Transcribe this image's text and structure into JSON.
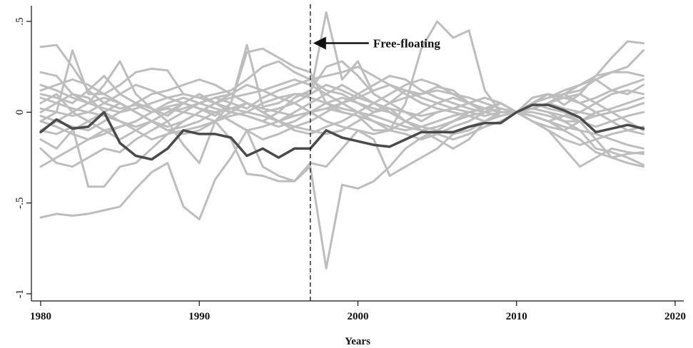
{
  "chart_data": {
    "type": "line",
    "xlabel": "Years",
    "ylabel": "",
    "xlim": [
      1980,
      2020
    ],
    "ylim": [
      -1,
      0.5
    ],
    "x_ticks": [
      1980,
      1990,
      2000,
      2010,
      2020
    ],
    "x_tick_labels": [
      "1980",
      "1990",
      "2000",
      "2010",
      "2020"
    ],
    "y_ticks": [
      -1,
      -0.5,
      0,
      0.5
    ],
    "y_tick_labels": [
      "-1",
      "-.5",
      "0",
      ".5"
    ],
    "grid": false,
    "legend": "none",
    "x": [
      1980,
      1981,
      1982,
      1983,
      1984,
      1985,
      1986,
      1987,
      1988,
      1989,
      1990,
      1991,
      1992,
      1993,
      1994,
      1995,
      1996,
      1997,
      1998,
      1999,
      2000,
      2001,
      2002,
      2003,
      2004,
      2005,
      2006,
      2007,
      2008,
      2009,
      2010,
      2011,
      2012,
      2013,
      2014,
      2015,
      2016,
      2017,
      2018
    ],
    "colors": {
      "background_series": "#bdbdbd",
      "highlight_series": "#4a4a4a",
      "annotation": "#111111"
    },
    "annotation": {
      "text": "Free-floating",
      "x_line": 1997,
      "arrow_y": 0.38
    },
    "highlight_series": {
      "values": [
        -0.11,
        -0.04,
        -0.09,
        -0.08,
        0.0,
        -0.17,
        -0.24,
        -0.26,
        -0.2,
        -0.1,
        -0.12,
        -0.12,
        -0.14,
        -0.24,
        -0.2,
        -0.25,
        -0.2,
        -0.2,
        -0.1,
        -0.14,
        -0.16,
        -0.18,
        -0.19,
        -0.15,
        -0.11,
        -0.11,
        -0.11,
        -0.08,
        -0.06,
        -0.06,
        0.0,
        0.04,
        0.04,
        0.01,
        -0.03,
        -0.11,
        -0.09,
        -0.07,
        -0.09
      ]
    },
    "background_series": [
      {
        "values": [
          0.36,
          0.37,
          0.25,
          0.12,
          0.05,
          0.02,
          0.04,
          0.0,
          0.03,
          0.05,
          0.02,
          -0.02,
          0.05,
          0.37,
          0.03,
          0.05,
          0.1,
          0.1,
          0.55,
          0.18,
          0.28,
          0.1,
          0.05,
          0.12,
          0.1,
          0.14,
          0.12,
          0.05,
          0.02,
          0.0,
          0.0,
          0.08,
          0.1,
          0.04,
          0.1,
          0.2,
          0.3,
          0.39,
          0.38
        ]
      },
      {
        "values": [
          -0.58,
          -0.56,
          -0.57,
          -0.56,
          -0.54,
          -0.52,
          -0.42,
          -0.33,
          -0.28,
          -0.52,
          -0.59,
          -0.37,
          -0.25,
          -0.1,
          -0.3,
          -0.35,
          -0.38,
          -0.3,
          -0.86,
          -0.4,
          -0.42,
          -0.38,
          -0.3,
          -0.2,
          -0.14,
          -0.1,
          -0.05,
          0.0,
          0.02,
          0.0,
          0.0,
          -0.02,
          -0.05,
          -0.1,
          -0.15,
          -0.22,
          -0.25,
          -0.23,
          -0.22
        ]
      },
      {
        "values": [
          0.22,
          0.2,
          0.1,
          0.05,
          0.15,
          0.28,
          0.1,
          0.02,
          -0.05,
          -0.18,
          -0.28,
          -0.05,
          0.05,
          0.33,
          0.35,
          0.3,
          0.25,
          0.22,
          0.05,
          0.0,
          -0.02,
          -0.1,
          -0.1,
          0.05,
          0.35,
          0.5,
          0.41,
          0.45,
          0.12,
          0.0,
          0.0,
          0.05,
          0.02,
          0.0,
          -0.05,
          -0.15,
          -0.25,
          -0.28,
          -0.3
        ]
      },
      {
        "values": [
          -0.1,
          -0.12,
          -0.08,
          -0.41,
          -0.41,
          -0.3,
          -0.28,
          -0.2,
          -0.12,
          -0.1,
          -0.08,
          -0.05,
          -0.15,
          -0.34,
          -0.35,
          -0.38,
          -0.38,
          -0.28,
          -0.3,
          -0.2,
          -0.1,
          -0.15,
          -0.35,
          -0.3,
          -0.25,
          -0.2,
          -0.12,
          -0.08,
          -0.05,
          -0.02,
          0.0,
          -0.05,
          -0.1,
          -0.2,
          -0.3,
          -0.25,
          -0.2,
          -0.22,
          -0.23
        ]
      },
      {
        "values": [
          -0.05,
          0.0,
          0.34,
          0.1,
          0.1,
          0.15,
          0.22,
          0.24,
          0.23,
          0.1,
          0.08,
          0.1,
          0.12,
          0.18,
          0.25,
          0.28,
          0.22,
          0.18,
          0.12,
          0.1,
          0.05,
          0.0,
          0.02,
          -0.05,
          -0.1,
          -0.15,
          -0.2,
          -0.15,
          -0.05,
          0.0,
          0.0,
          0.02,
          0.05,
          0.1,
          0.12,
          0.18,
          0.22,
          0.22,
          0.2
        ]
      },
      {
        "values": [
          0.1,
          0.08,
          0.05,
          0.12,
          0.2,
          0.1,
          0.05,
          0.02,
          -0.02,
          0.05,
          0.1,
          0.05,
          0.0,
          -0.02,
          -0.05,
          0.0,
          0.08,
          0.12,
          0.25,
          0.28,
          0.2,
          0.1,
          0.05,
          0.0,
          -0.05,
          0.0,
          0.02,
          0.05,
          0.08,
          0.05,
          0.0,
          0.02,
          0.05,
          0.1,
          0.15,
          0.18,
          0.12,
          0.1,
          0.15
        ]
      },
      {
        "values": [
          -0.15,
          -0.2,
          -0.1,
          -0.05,
          0.0,
          0.05,
          0.0,
          -0.05,
          -0.1,
          -0.08,
          -0.05,
          0.0,
          0.02,
          0.05,
          0.0,
          -0.05,
          -0.1,
          -0.12,
          -0.08,
          -0.05,
          0.0,
          0.05,
          0.1,
          0.15,
          0.18,
          0.15,
          0.1,
          0.05,
          0.0,
          0.05,
          0.0,
          -0.02,
          -0.05,
          -0.08,
          -0.1,
          -0.12,
          -0.15,
          -0.18,
          -0.2
        ]
      },
      {
        "values": [
          0.0,
          0.05,
          0.1,
          0.08,
          0.0,
          -0.05,
          -0.1,
          -0.15,
          -0.12,
          -0.05,
          0.0,
          0.05,
          0.08,
          0.1,
          0.12,
          0.15,
          0.18,
          0.15,
          0.1,
          0.05,
          0.0,
          -0.05,
          -0.1,
          -0.12,
          -0.15,
          -0.12,
          -0.08,
          -0.05,
          0.0,
          0.05,
          0.0,
          0.05,
          0.08,
          0.1,
          0.05,
          0.0,
          -0.05,
          -0.1,
          -0.12
        ]
      },
      {
        "values": [
          -0.2,
          -0.28,
          -0.3,
          -0.25,
          -0.2,
          -0.22,
          -0.15,
          -0.1,
          -0.05,
          0.0,
          0.05,
          0.08,
          0.1,
          0.05,
          0.0,
          0.02,
          0.05,
          0.1,
          0.15,
          0.12,
          0.08,
          0.05,
          0.02,
          0.0,
          -0.02,
          0.0,
          0.02,
          0.05,
          0.08,
          0.05,
          0.0,
          0.02,
          0.0,
          -0.05,
          -0.1,
          -0.2,
          -0.22,
          -0.25,
          -0.29
        ]
      },
      {
        "values": [
          0.05,
          0.1,
          0.0,
          -0.05,
          -0.1,
          -0.15,
          -0.1,
          -0.05,
          0.0,
          0.05,
          0.02,
          0.0,
          -0.05,
          -0.1,
          -0.08,
          -0.05,
          0.0,
          0.05,
          0.1,
          0.15,
          0.1,
          0.05,
          0.0,
          -0.05,
          -0.08,
          -0.1,
          -0.12,
          -0.1,
          -0.05,
          0.0,
          0.0,
          -0.05,
          -0.08,
          -0.1,
          -0.05,
          0.0,
          0.02,
          0.05,
          0.08
        ]
      },
      {
        "values": [
          -0.3,
          -0.25,
          -0.2,
          -0.15,
          -0.1,
          -0.08,
          -0.05,
          0.0,
          0.02,
          0.0,
          -0.02,
          -0.05,
          -0.02,
          0.0,
          0.05,
          0.08,
          0.1,
          0.08,
          0.05,
          0.02,
          0.0,
          -0.02,
          -0.05,
          -0.08,
          -0.1,
          -0.08,
          -0.05,
          -0.02,
          0.0,
          0.02,
          0.0,
          0.02,
          0.05,
          0.08,
          0.1,
          0.05,
          0.0,
          -0.05,
          -0.1
        ]
      },
      {
        "values": [
          0.15,
          0.12,
          0.08,
          0.05,
          0.02,
          0.0,
          0.05,
          0.1,
          0.12,
          0.15,
          0.18,
          0.15,
          0.1,
          0.05,
          0.0,
          -0.05,
          -0.08,
          -0.1,
          -0.12,
          -0.1,
          -0.05,
          0.0,
          0.05,
          0.08,
          0.1,
          0.12,
          0.1,
          0.08,
          0.05,
          0.02,
          0.0,
          0.0,
          -0.02,
          -0.05,
          -0.05,
          -0.02,
          0.0,
          0.02,
          0.05
        ]
      },
      {
        "values": [
          -0.05,
          -0.08,
          -0.12,
          -0.15,
          -0.12,
          -0.08,
          -0.05,
          0.0,
          0.05,
          0.08,
          0.05,
          0.02,
          0.0,
          -0.02,
          -0.05,
          -0.08,
          -0.05,
          0.0,
          0.02,
          0.05,
          0.08,
          0.12,
          0.15,
          0.12,
          0.08,
          0.05,
          0.02,
          0.0,
          -0.02,
          0.0,
          0.0,
          0.02,
          0.0,
          -0.02,
          -0.05,
          -0.08,
          -0.05,
          -0.02,
          0.0
        ]
      },
      {
        "values": [
          0.02,
          0.0,
          -0.02,
          0.0,
          0.05,
          0.1,
          0.15,
          0.12,
          0.08,
          0.05,
          0.02,
          0.0,
          -0.05,
          -0.1,
          -0.15,
          -0.12,
          -0.08,
          -0.05,
          0.0,
          0.05,
          0.1,
          0.15,
          0.2,
          0.18,
          0.12,
          0.08,
          0.05,
          0.02,
          0.0,
          -0.02,
          0.0,
          0.05,
          0.1,
          0.08,
          0.05,
          0.08,
          0.12,
          0.15,
          0.18
        ]
      },
      {
        "values": [
          -0.1,
          -0.05,
          0.0,
          0.05,
          0.08,
          0.05,
          0.0,
          -0.05,
          -0.08,
          -0.05,
          0.0,
          0.05,
          0.1,
          0.15,
          0.12,
          0.08,
          0.05,
          0.0,
          -0.05,
          -0.08,
          -0.1,
          -0.12,
          -0.1,
          -0.05,
          0.0,
          0.05,
          0.08,
          0.05,
          0.02,
          0.0,
          0.0,
          -0.05,
          -0.1,
          -0.15,
          -0.18,
          -0.15,
          -0.12,
          -0.1,
          -0.08
        ]
      },
      {
        "values": [
          0.08,
          0.05,
          0.02,
          0.0,
          -0.02,
          -0.05,
          -0.08,
          -0.05,
          0.0,
          0.02,
          0.05,
          0.08,
          0.05,
          0.02,
          0.08,
          0.12,
          0.15,
          0.18,
          0.2,
          0.22,
          0.25,
          0.2,
          0.15,
          0.1,
          0.05,
          0.02,
          0.0,
          -0.02,
          -0.05,
          -0.02,
          0.0,
          0.02,
          0.05,
          0.02,
          0.0,
          -0.02,
          0.0,
          0.02,
          0.05
        ]
      },
      {
        "values": [
          -0.02,
          -0.05,
          -0.08,
          -0.1,
          -0.05,
          0.0,
          0.02,
          0.05,
          0.08,
          0.1,
          0.08,
          0.05,
          0.02,
          0.0,
          -0.02,
          -0.05,
          -0.02,
          0.0,
          0.05,
          0.08,
          0.05,
          0.02,
          0.0,
          -0.05,
          -0.1,
          -0.12,
          -0.15,
          -0.12,
          -0.08,
          -0.05,
          0.0,
          -0.02,
          -0.05,
          -0.02,
          0.0,
          0.05,
          0.1,
          0.12,
          0.1
        ]
      },
      {
        "values": [
          0.12,
          0.15,
          0.18,
          0.15,
          0.1,
          0.05,
          0.0,
          -0.05,
          -0.1,
          -0.12,
          -0.1,
          -0.05,
          0.0,
          0.05,
          0.02,
          0.0,
          -0.02,
          0.0,
          0.02,
          0.0,
          -0.02,
          -0.05,
          -0.08,
          -0.1,
          -0.08,
          -0.05,
          -0.02,
          0.0,
          0.02,
          0.05,
          0.0,
          0.05,
          0.08,
          0.12,
          0.15,
          0.2,
          0.22,
          0.25,
          0.34
        ]
      }
    ]
  }
}
